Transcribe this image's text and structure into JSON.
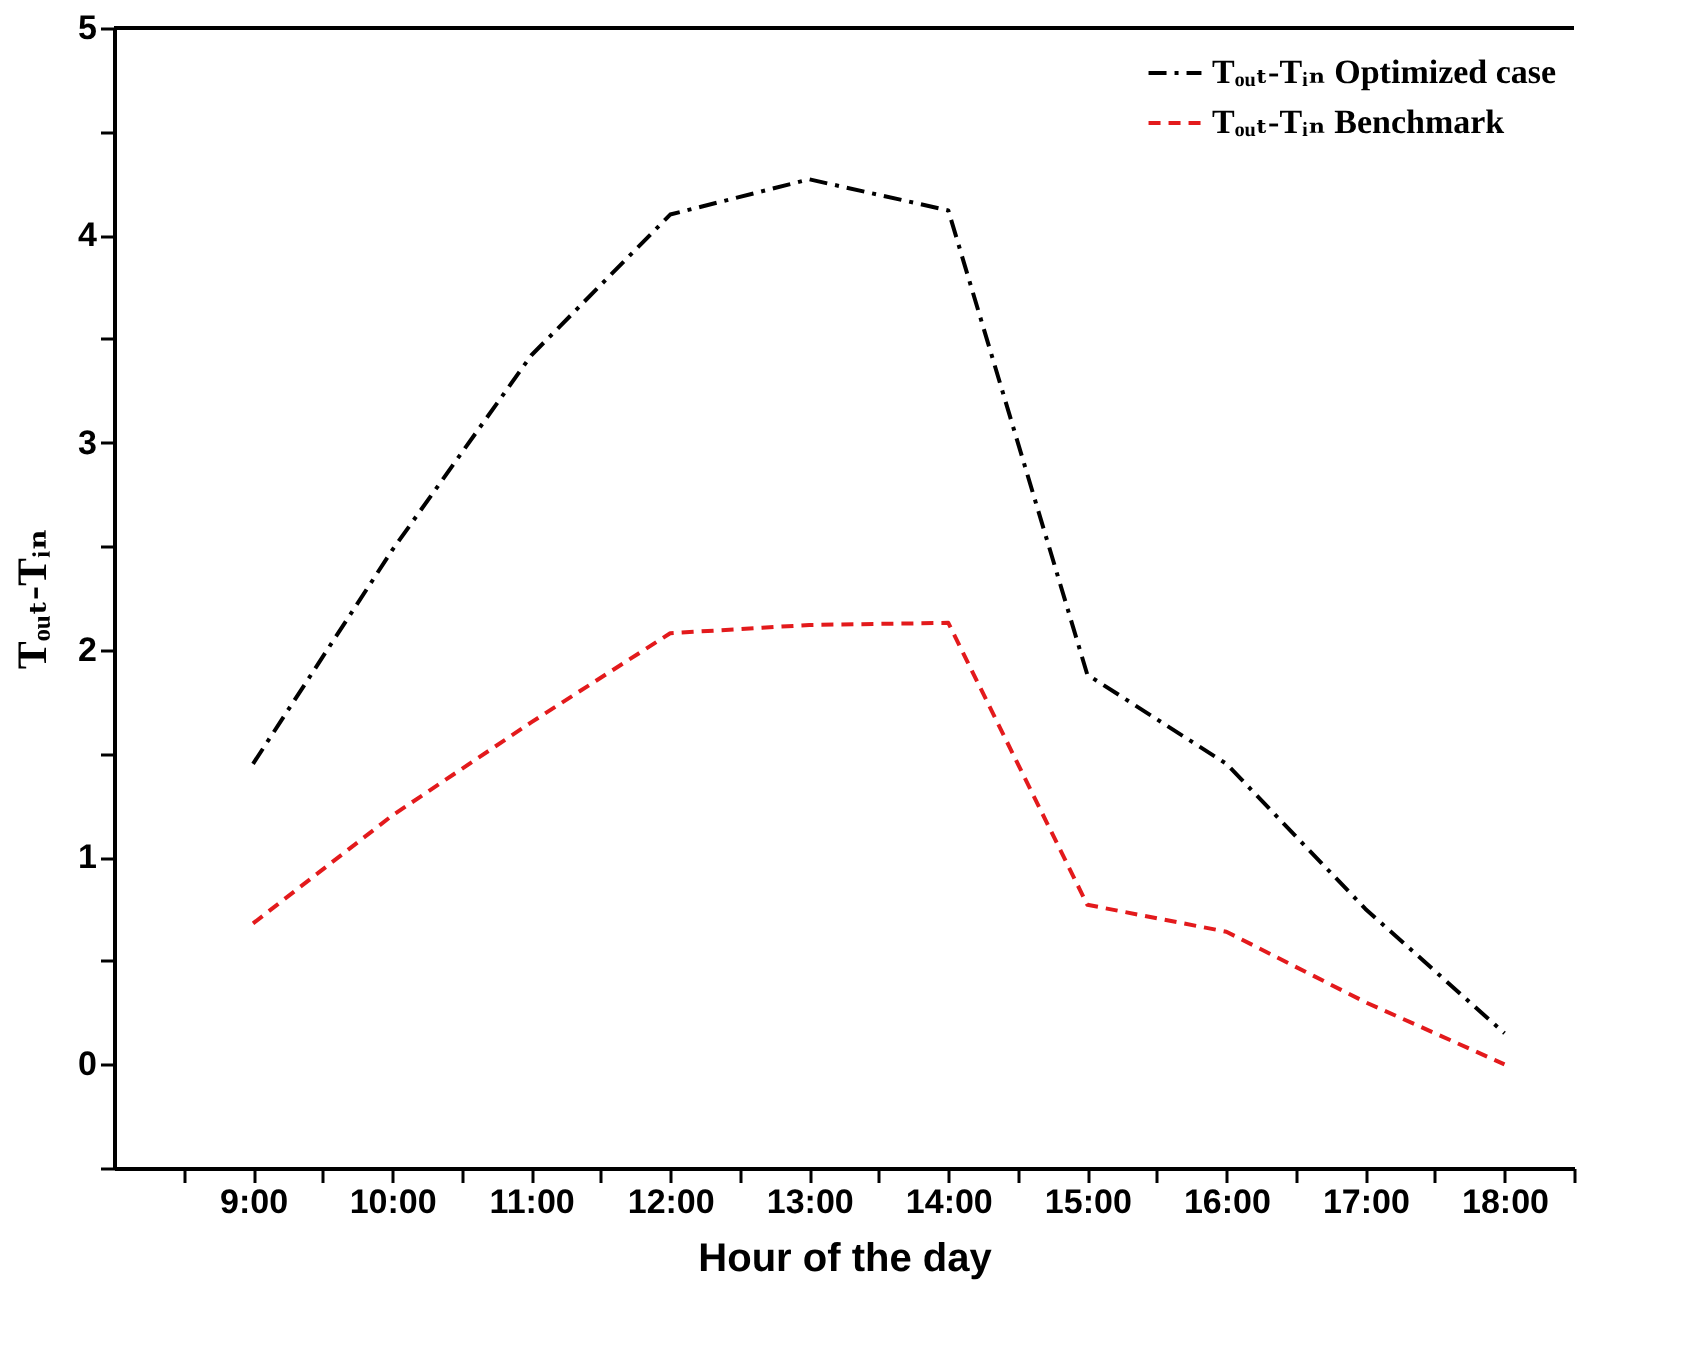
{
  "chart_data": {
    "type": "line",
    "xlabel": "Hour of the day",
    "ylabel": "Tₒᵤₜ-Tᵢₙ",
    "x": [
      9,
      10,
      11,
      12,
      13,
      14,
      15,
      16,
      17,
      18
    ],
    "series": [
      {
        "name": "Tₒᵤₜ-Tᵢₙ Optimized case",
        "color": "#000000",
        "line_style": "dashdot",
        "values": [
          1.45,
          2.48,
          3.42,
          4.1,
          4.27,
          4.12,
          1.88,
          1.45,
          0.75,
          0.15
        ]
      },
      {
        "name": "Tₒᵤₜ-Tᵢₙ Benchmark",
        "color": "#e31a1c",
        "line_style": "dashed",
        "values": [
          0.68,
          1.2,
          1.65,
          2.08,
          2.12,
          2.13,
          0.77,
          0.64,
          0.3,
          0.0
        ]
      }
    ],
    "xlim": [
      8.0,
      18.5
    ],
    "xticks": [
      {
        "value": 8.5,
        "label": null
      },
      {
        "value": 9,
        "label": "9:00"
      },
      {
        "value": 9.5,
        "label": null
      },
      {
        "value": 10,
        "label": "10:00"
      },
      {
        "value": 10.5,
        "label": null
      },
      {
        "value": 11,
        "label": "11:00"
      },
      {
        "value": 11.5,
        "label": null
      },
      {
        "value": 12,
        "label": "12:00"
      },
      {
        "value": 12.5,
        "label": null
      },
      {
        "value": 13,
        "label": "13:00"
      },
      {
        "value": 13.5,
        "label": null
      },
      {
        "value": 14,
        "label": "14:00"
      },
      {
        "value": 14.5,
        "label": null
      },
      {
        "value": 15,
        "label": "15:00"
      },
      {
        "value": 15.5,
        "label": null
      },
      {
        "value": 16,
        "label": "16:00"
      },
      {
        "value": 16.5,
        "label": null
      },
      {
        "value": 17,
        "label": "17:00"
      },
      {
        "value": 17.5,
        "label": null
      },
      {
        "value": 18,
        "label": "18:00"
      },
      {
        "value": 18.5,
        "label": null
      }
    ],
    "ylim": [
      -0.5,
      5
    ],
    "yticks": [
      {
        "value": -0.5,
        "label": null
      },
      0,
      {
        "value": 0.5,
        "label": null
      },
      1,
      {
        "value": 1.5,
        "label": null
      },
      2,
      {
        "value": 2.5,
        "label": null
      },
      3,
      {
        "value": 3.5,
        "label": null
      },
      4,
      {
        "value": 4.5,
        "label": null
      },
      5
    ],
    "legend": "top right",
    "grid": false
  }
}
